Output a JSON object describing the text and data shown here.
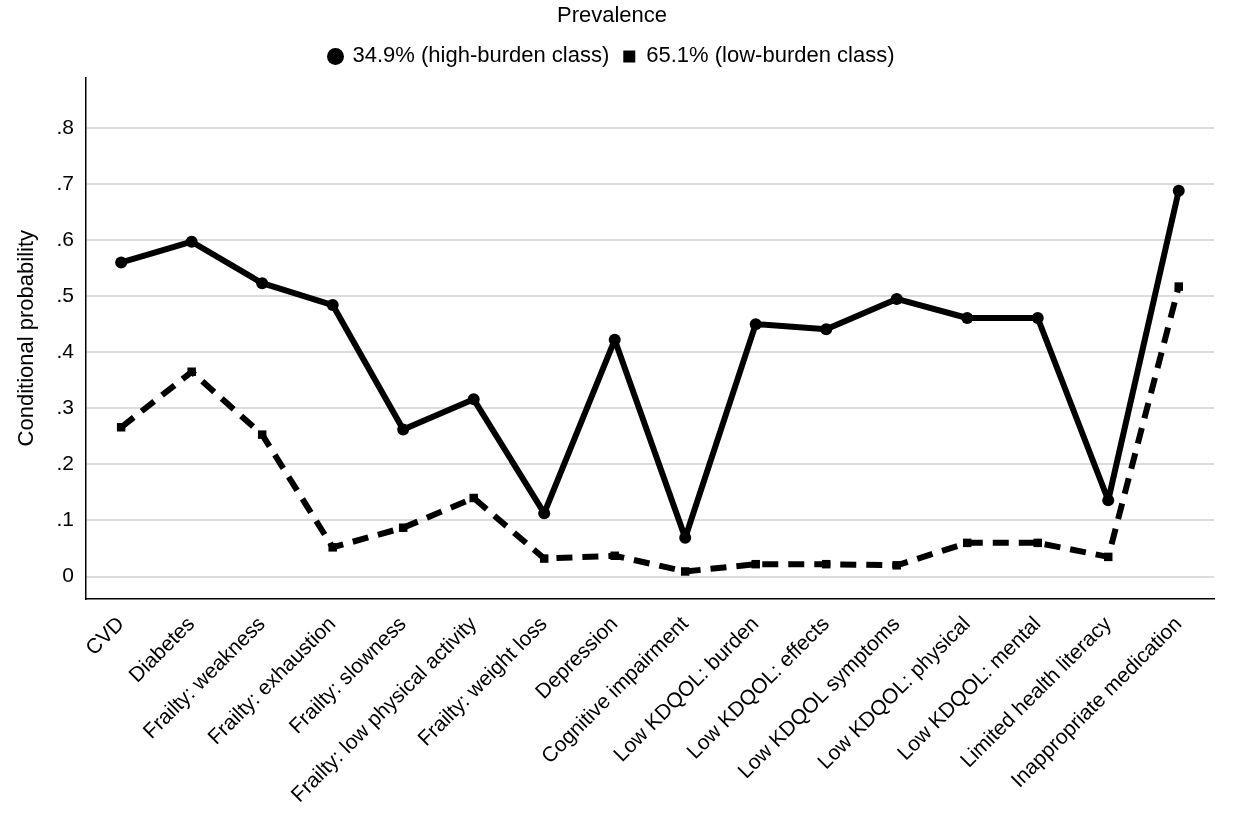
{
  "chart_data": {
    "type": "line",
    "ylabel": "Conditional probability",
    "legend_title": "Prevalence",
    "legend": "top",
    "grid": "y",
    "categories": [
      "CVD",
      "Diabetes",
      "Frailty: weakness",
      "Frailty: exhaustion",
      "Frailty: slowness",
      "Frailty: low physical activity",
      "Frailty: weight loss",
      "Depression",
      "Cognitive impairment",
      "Low KDQOL: burden",
      "Low KDQOL: effects",
      "Low KDQOL symptoms",
      "Low KDQOL: physical",
      "Low KDQOL: mental",
      "Limited health literacy",
      "Inappropriate medication"
    ],
    "ylim": [
      -0.04,
      0.89
    ],
    "yticks": [
      {
        "value": 0,
        "label": "0"
      },
      {
        "value": 0.1,
        "label": ".1"
      },
      {
        "value": 0.2,
        "label": ".2"
      },
      {
        "value": 0.3,
        "label": ".3"
      },
      {
        "value": 0.4,
        "label": ".4"
      },
      {
        "value": 0.5,
        "label": ".5"
      },
      {
        "value": 0.6,
        "label": ".6"
      },
      {
        "value": 0.7,
        "label": ".7"
      },
      {
        "value": 0.8,
        "label": ".8"
      }
    ],
    "series": [
      {
        "name": "34.9% (high-burden class)",
        "color": "#000000",
        "marker": "circle",
        "line_style": "solid",
        "values": [
          0.56,
          0.597,
          0.523,
          0.484,
          0.262,
          0.316,
          0.113,
          0.422,
          0.069,
          0.45,
          0.441,
          0.495,
          0.461,
          0.461,
          0.136,
          0.688
        ]
      },
      {
        "name": "65.1% (low-burden class)",
        "color": "#000000",
        "marker": "square",
        "line_style": "dashed",
        "values": [
          0.266,
          0.365,
          0.253,
          0.052,
          0.087,
          0.14,
          0.032,
          0.037,
          0.009,
          0.022,
          0.022,
          0.02,
          0.06,
          0.06,
          0.035,
          0.517
        ]
      }
    ]
  }
}
